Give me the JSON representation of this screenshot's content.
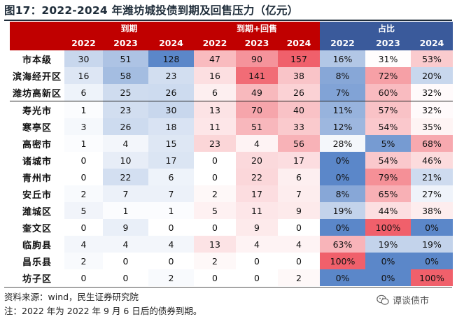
{
  "title": "图17：2022-2024 年潍坊城投债到期及回售压力（亿元）",
  "headers": {
    "groups": [
      "到期",
      "到期+回售",
      "占比"
    ],
    "years": [
      "2022",
      "2023",
      "2024"
    ]
  },
  "chart_data": {
    "type": "table",
    "title": "图17：2022-2024 年潍坊城投债到期及回售压力（亿元）",
    "group_headers": [
      "到期",
      "到期+回售",
      "占比"
    ],
    "year_headers": [
      "2022",
      "2023",
      "2024"
    ],
    "rows": [
      {
        "name": "市本级",
        "due": [
          "30",
          "51",
          "128"
        ],
        "due_put": [
          "47",
          "90",
          "157"
        ],
        "share": [
          "16%",
          "31%",
          "53%"
        ]
      },
      {
        "name": "滨海经开区",
        "due": [
          "16",
          "58",
          "23"
        ],
        "due_put": [
          "16",
          "141",
          "38"
        ],
        "share": [
          "8%",
          "72%",
          "20%"
        ]
      },
      {
        "name": "潍坊高新区",
        "due": [
          "6",
          "25",
          "26"
        ],
        "due_put": [
          "6",
          "49",
          "26"
        ],
        "share": [
          "7%",
          "60%",
          "32%"
        ]
      },
      {
        "name": "寿光市",
        "due": [
          "1",
          "23",
          "30"
        ],
        "due_put": [
          "13",
          "70",
          "40"
        ],
        "share": [
          "11%",
          "57%",
          "32%"
        ]
      },
      {
        "name": "寒亭区",
        "due": [
          "3",
          "26",
          "18"
        ],
        "due_put": [
          "11",
          "51",
          "33"
        ],
        "share": [
          "12%",
          "54%",
          "35%"
        ]
      },
      {
        "name": "高密市",
        "due": [
          "1",
          "4",
          "15"
        ],
        "due_put": [
          "23",
          "4",
          "56"
        ],
        "share": [
          "28%",
          "5%",
          "68%"
        ]
      },
      {
        "name": "诸城市",
        "due": [
          "0",
          "10",
          "17"
        ],
        "due_put": [
          "0",
          "20",
          "17"
        ],
        "share": [
          "0%",
          "54%",
          "46%"
        ]
      },
      {
        "name": "青州市",
        "due": [
          "0",
          "22",
          "6"
        ],
        "due_put": [
          "0",
          "22",
          "6"
        ],
        "share": [
          "0%",
          "79%",
          "21%"
        ]
      },
      {
        "name": "安丘市",
        "due": [
          "2",
          "7",
          "7"
        ],
        "due_put": [
          "2",
          "17",
          "7"
        ],
        "share": [
          "8%",
          "65%",
          "27%"
        ]
      },
      {
        "name": "潍城区",
        "due": [
          "5",
          "1",
          "1"
        ],
        "due_put": [
          "5",
          "11",
          "9"
        ],
        "share": [
          "19%",
          "44%",
          "38%"
        ]
      },
      {
        "name": "奎文区",
        "due": [
          "0",
          "9",
          "0"
        ],
        "due_put": [
          "0",
          "9",
          "0"
        ],
        "share": [
          "0%",
          "100%",
          "0%"
        ]
      },
      {
        "name": "临朐县",
        "due": [
          "4",
          "4",
          "4"
        ],
        "due_put": [
          "13",
          "4",
          "4"
        ],
        "share": [
          "63%",
          "19%",
          "19%"
        ]
      },
      {
        "name": "昌乐县",
        "due": [
          "2",
          "0",
          "0"
        ],
        "due_put": [
          "2",
          "0",
          "0"
        ],
        "share": [
          "100%",
          "0%",
          "0%"
        ]
      },
      {
        "name": "坊子区",
        "due": [
          "0",
          "0",
          "2"
        ],
        "due_put": [
          "0",
          "0",
          "2"
        ],
        "share": [
          "0%",
          "0%",
          "100%"
        ]
      }
    ],
    "separator_after_row": 3,
    "colors": {
      "header_red": "#c00000",
      "header_blue": "#3a5a9b",
      "scale_blue": "#5b87c9",
      "scale_red": "#f0606b",
      "white": "#ffffff"
    }
  },
  "footer": {
    "source": "资料来源：wind，民生证券研究院",
    "note": "注：2022 年为 2022 年 9 月 6 日后的债券到期。",
    "logo_text": "谭谈债市",
    "logo_icon": "wechat-icon"
  }
}
